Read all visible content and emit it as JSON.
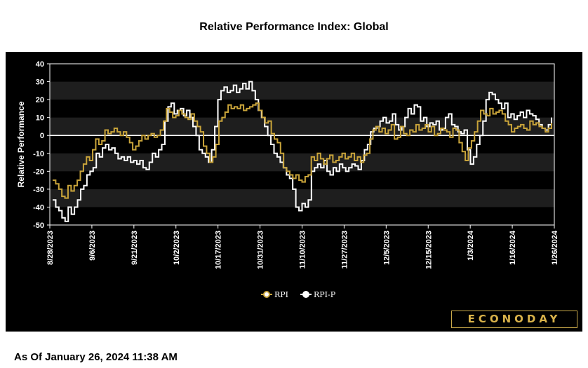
{
  "title": "Relative Performance Index: Global",
  "as_of": "As Of January 26, 2024 11:38 AM",
  "logo_text": "ECONODAY",
  "colors": {
    "background": "#000000",
    "band": "#1e1e1e",
    "rpi": "#c9a43a",
    "rpi_p": "#ffffff",
    "zero_line": "#ffffff"
  },
  "chart_data": {
    "type": "line",
    "title": "Relative Performance Index: Global",
    "ylabel": "Relative Performance",
    "xlabel": "",
    "ylim": [
      -50,
      40
    ],
    "yticks": [
      40,
      30,
      20,
      10,
      0,
      -10,
      -20,
      -30,
      -40,
      -50
    ],
    "xticks": [
      "8/28/2023",
      "9/6/2023",
      "9/21/2023",
      "10/2/2023",
      "10/17/2023",
      "10/31/2023",
      "11/10/2023",
      "11/27/2023",
      "12/5/2023",
      "12/15/2023",
      "1/3/2024",
      "1/16/2024",
      "1/26/2024"
    ],
    "legend": "bottom-center",
    "grid": "alternating horizontal bands",
    "series": [
      {
        "name": "RPI",
        "values": [
          -25,
          -27,
          -30,
          -34,
          -35,
          -28,
          -31,
          -28,
          -25,
          -20,
          -16,
          -12,
          -14,
          -8,
          -2,
          -5,
          -3,
          3,
          1,
          2,
          4,
          2,
          0,
          2,
          -1,
          -4,
          -8,
          -6,
          -3,
          0,
          -2,
          0,
          1,
          -1,
          0,
          3,
          8,
          15,
          13,
          10,
          11,
          14,
          12,
          10,
          9,
          12,
          8,
          5,
          2,
          -6,
          -10,
          -15,
          -12,
          -5,
          8,
          10,
          13,
          17,
          15,
          16,
          15,
          17,
          14,
          15,
          16,
          17,
          18,
          14,
          10,
          7,
          8,
          1,
          -2,
          -4,
          -10,
          -18,
          -20,
          -22,
          -24,
          -22,
          -25,
          -26,
          -23,
          -22,
          -12,
          -14,
          -10,
          -13,
          -16,
          -13,
          -11,
          -15,
          -14,
          -12,
          -10,
          -13,
          -12,
          -10,
          -14,
          -12,
          -15,
          -11,
          -10,
          -2,
          3,
          5,
          2,
          4,
          1,
          3,
          6,
          -2,
          -1,
          5,
          1,
          0,
          3,
          2,
          6,
          3,
          4,
          6,
          2,
          5,
          0,
          1,
          4,
          3,
          2,
          -1,
          4,
          3,
          -4,
          -9,
          -14,
          -7,
          -3,
          2,
          8,
          14,
          12,
          11,
          15,
          12,
          13,
          14,
          12,
          8,
          6,
          2,
          4,
          5,
          6,
          4,
          3,
          8,
          6,
          7,
          5,
          4,
          2,
          4,
          7
        ],
        "x_range": [
          "8/28/2023",
          "1/26/2024"
        ]
      },
      {
        "name": "RPI-P",
        "values": [
          -36,
          -40,
          -42,
          -46,
          -48,
          -40,
          -44,
          -40,
          -36,
          -30,
          -28,
          -22,
          -20,
          -18,
          -10,
          -12,
          -7,
          -5,
          -8,
          -7,
          -10,
          -13,
          -12,
          -14,
          -12,
          -15,
          -14,
          -16,
          -14,
          -18,
          -19,
          -15,
          -10,
          -12,
          -8,
          -5,
          8,
          16,
          18,
          12,
          14,
          15,
          11,
          14,
          10,
          5,
          0,
          -8,
          -10,
          -12,
          -15,
          -8,
          5,
          20,
          25,
          27,
          24,
          25,
          28,
          24,
          26,
          29,
          26,
          30,
          25,
          20,
          14,
          10,
          5,
          0,
          -5,
          -10,
          -12,
          -15,
          -18,
          -22,
          -24,
          -30,
          -40,
          -42,
          -38,
          -40,
          -36,
          -20,
          -18,
          -16,
          -18,
          -14,
          -20,
          -22,
          -18,
          -20,
          -16,
          -18,
          -20,
          -18,
          -16,
          -17,
          -19,
          -14,
          -8,
          -5,
          2,
          4,
          5,
          8,
          10,
          7,
          8,
          12,
          6,
          3,
          5,
          10,
          15,
          12,
          17,
          16,
          8,
          10,
          5,
          7,
          6,
          8,
          3,
          4,
          10,
          12,
          6,
          5,
          2,
          1,
          3,
          -8,
          -16,
          -12,
          -5,
          0,
          8,
          20,
          24,
          23,
          20,
          18,
          15,
          18,
          10,
          12,
          9,
          11,
          13,
          10,
          14,
          12,
          11,
          9,
          6,
          4,
          3,
          6,
          10
        ],
        "x_range": [
          "8/28/2023",
          "1/26/2024"
        ]
      }
    ]
  }
}
